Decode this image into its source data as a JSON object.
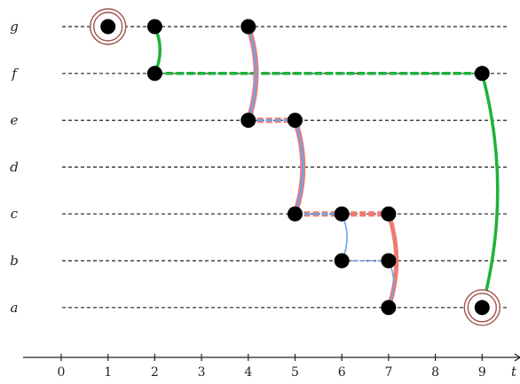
{
  "nodes": [
    "a",
    "b",
    "c",
    "d",
    "e",
    "f",
    "g"
  ],
  "axis": {
    "ticks": [
      "0",
      "1",
      "2",
      "3",
      "4",
      "5",
      "6",
      "7",
      "8",
      "9"
    ],
    "name": "t"
  },
  "colors": {
    "dashed_line": "#222222",
    "vertex": "#000000",
    "ring": "#a0524a",
    "green": "#1db23a",
    "red": "#ef7a72",
    "blue": "#6fa3e8",
    "purple": "#b08fc8"
  },
  "events": [
    {
      "node": "g",
      "t": 1,
      "endpoint": true
    },
    {
      "node": "g",
      "t": 2
    },
    {
      "node": "f",
      "t": 2
    },
    {
      "node": "f",
      "t": 9
    },
    {
      "node": "a",
      "t": 9,
      "endpoint": true
    },
    {
      "node": "g",
      "t": 4
    },
    {
      "node": "e",
      "t": 4
    },
    {
      "node": "e",
      "t": 5
    },
    {
      "node": "c",
      "t": 5
    },
    {
      "node": "c",
      "t": 6
    },
    {
      "node": "c",
      "t": 7
    },
    {
      "node": "b",
      "t": 6
    },
    {
      "node": "b",
      "t": 7
    },
    {
      "node": "a",
      "t": 7
    }
  ],
  "edges": [
    {
      "kind": "jump",
      "from": {
        "node": "g",
        "t": 2
      },
      "to": {
        "node": "f",
        "t": 2
      },
      "strokes": [
        {
          "color": "green",
          "w": 3.5
        }
      ]
    },
    {
      "kind": "wait",
      "node": "f",
      "t0": 2,
      "t1": 9,
      "strokes": [
        {
          "color": "green",
          "w": 3.5,
          "dash": "9 3"
        }
      ]
    },
    {
      "kind": "jump",
      "from": {
        "node": "f",
        "t": 9
      },
      "to": {
        "node": "a",
        "t": 9
      },
      "strokes": [
        {
          "color": "green",
          "w": 3.5
        }
      ]
    },
    {
      "kind": "jump",
      "from": {
        "node": "g",
        "t": 4
      },
      "to": {
        "node": "e",
        "t": 4
      },
      "strokes": [
        {
          "color": "red",
          "w": 6
        },
        {
          "color": "blue",
          "w": 2.5
        }
      ]
    },
    {
      "kind": "wait",
      "node": "e",
      "t0": 4,
      "t1": 5,
      "strokes": [
        {
          "color": "red",
          "w": 6,
          "dash": "7 3"
        },
        {
          "color": "blue",
          "w": 2.5,
          "dash": "7 3"
        }
      ]
    },
    {
      "kind": "jump",
      "from": {
        "node": "e",
        "t": 5
      },
      "to": {
        "node": "c",
        "t": 5
      },
      "strokes": [
        {
          "color": "red",
          "w": 6
        },
        {
          "color": "blue",
          "w": 2.5
        }
      ]
    },
    {
      "kind": "wait",
      "node": "c",
      "t0": 5,
      "t1": 6,
      "strokes": [
        {
          "color": "red",
          "w": 6,
          "dash": "7 3"
        },
        {
          "color": "blue",
          "w": 2.5,
          "dash": "7 3"
        }
      ]
    },
    {
      "kind": "wait",
      "node": "c",
      "t0": 6,
      "t1": 7,
      "strokes": [
        {
          "color": "red",
          "w": 6,
          "dash": "7 3"
        }
      ]
    },
    {
      "kind": "jump",
      "from": {
        "node": "c",
        "t": 6
      },
      "to": {
        "node": "b",
        "t": 6
      },
      "strokes": [
        {
          "color": "blue",
          "w": 1.6
        }
      ]
    },
    {
      "kind": "wait",
      "node": "b",
      "t0": 6,
      "t1": 7,
      "strokes": [
        {
          "color": "blue",
          "w": 1.6,
          "dash": "7 3"
        }
      ]
    },
    {
      "kind": "jump",
      "from": {
        "node": "c",
        "t": 7
      },
      "to": {
        "node": "a",
        "t": 7
      },
      "strokes": [
        {
          "color": "red",
          "w": 5
        }
      ]
    },
    {
      "kind": "jump",
      "from": {
        "node": "b",
        "t": 7
      },
      "to": {
        "node": "a",
        "t": 7
      },
      "strokes": [
        {
          "color": "blue",
          "w": 1.6
        }
      ]
    }
  ]
}
